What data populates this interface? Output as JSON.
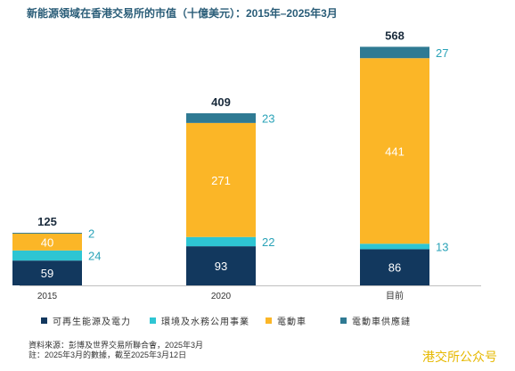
{
  "chart_data": {
    "type": "bar",
    "stacked": true,
    "title": "新能源領域在香港交易所的市值（十億美元）：2015年–2025年3月",
    "categories": [
      "2015",
      "2020",
      "目前"
    ],
    "totals": [
      125,
      409,
      568
    ],
    "series": [
      {
        "name": "可再生能源及電力",
        "color": "#12385e",
        "values": [
          59,
          93,
          86
        ]
      },
      {
        "name": "環境及水務公用事業",
        "color": "#2ec5d3",
        "values": [
          24,
          22,
          13
        ]
      },
      {
        "name": "電動車",
        "color": "#fbb627",
        "values": [
          40,
          271,
          441
        ]
      },
      {
        "name": "電動車供應鏈",
        "color": "#2f7a93",
        "values": [
          2,
          23,
          27
        ]
      }
    ],
    "ylim": [
      0,
      568
    ],
    "grid": false,
    "legend_position": "bottom"
  },
  "source": {
    "line1": "資料來源：彭博及世界交易所聯合會，2025年3月",
    "line2": "註：2025年3月的數據，截至2025年3月12日"
  },
  "watermark": "港交所公众号"
}
